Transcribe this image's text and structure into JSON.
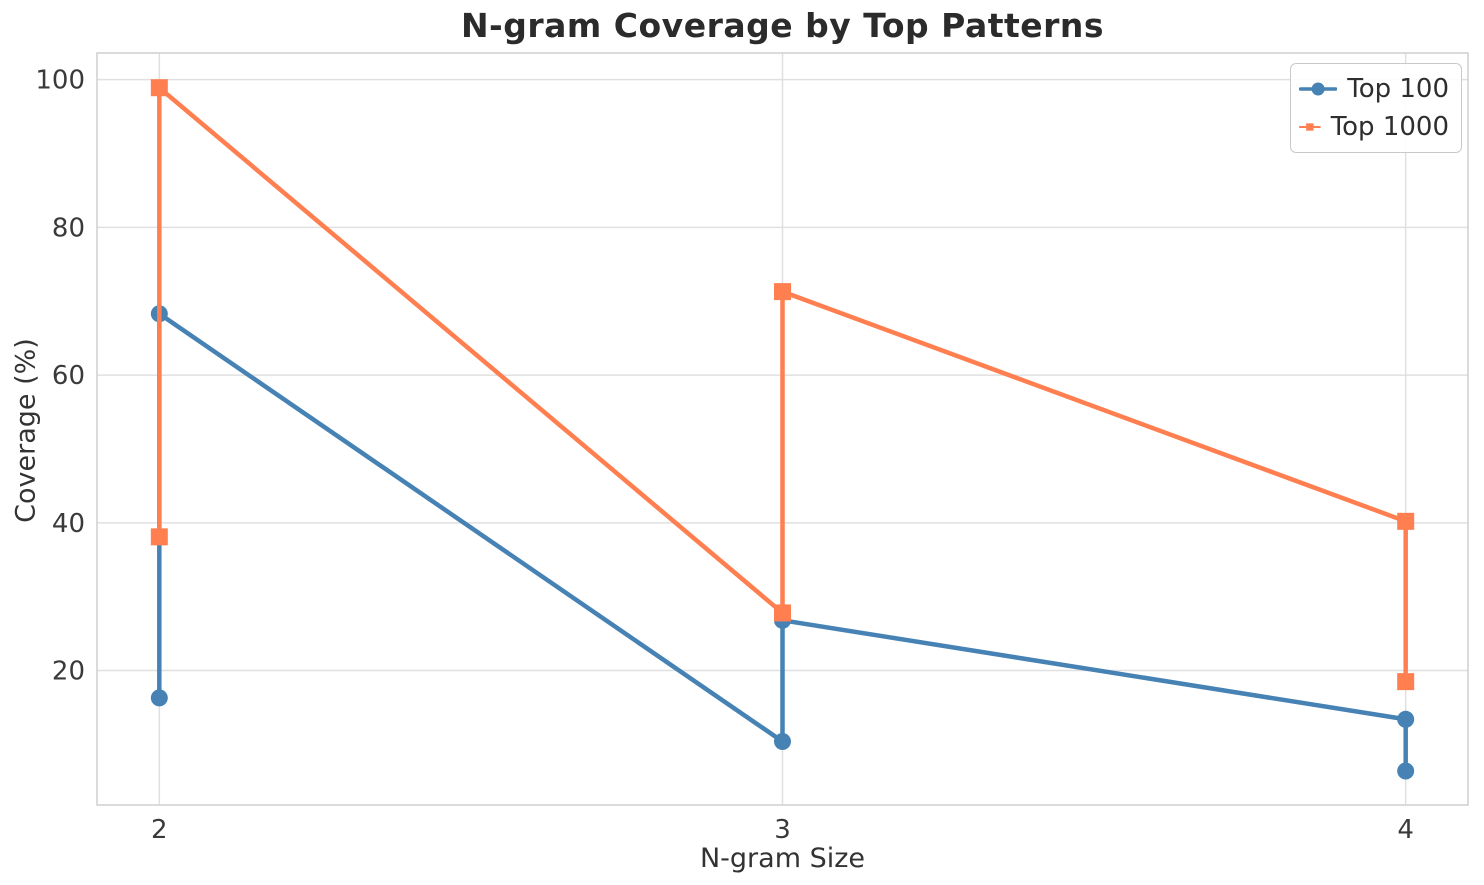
{
  "figure": {
    "background": "#ffffff",
    "grid_color": "#e0e0e0",
    "spine_color": "#cfcfcf",
    "text_color": "#2b2b2b",
    "tick_color": "#3a3a3a"
  },
  "chart_data": {
    "type": "line",
    "title": "N-gram Coverage by Top Patterns",
    "xlabel": "N-gram Size",
    "ylabel": "Coverage (%)",
    "xlim": [
      1.9,
      4.1
    ],
    "ylim": [
      1.8,
      103.6
    ],
    "x_ticks": [
      2,
      3,
      4
    ],
    "y_ticks": [
      20,
      40,
      60,
      80,
      100
    ],
    "grid": true,
    "legend_position": "upper right",
    "series": [
      {
        "name": "Top 100",
        "color": "#4682B4",
        "marker": "circle",
        "points": [
          [
            2,
            16.3
          ],
          [
            2,
            68.3
          ],
          [
            3,
            10.4
          ],
          [
            3,
            26.8
          ],
          [
            4,
            13.4
          ],
          [
            4,
            6.4
          ]
        ]
      },
      {
        "name": "Top 1000",
        "color": "#FF7F50",
        "marker": "square",
        "points": [
          [
            2,
            38.1
          ],
          [
            2,
            98.9
          ],
          [
            3,
            27.8
          ],
          [
            3,
            71.3
          ],
          [
            4,
            40.2
          ],
          [
            4,
            18.5
          ]
        ]
      }
    ]
  }
}
